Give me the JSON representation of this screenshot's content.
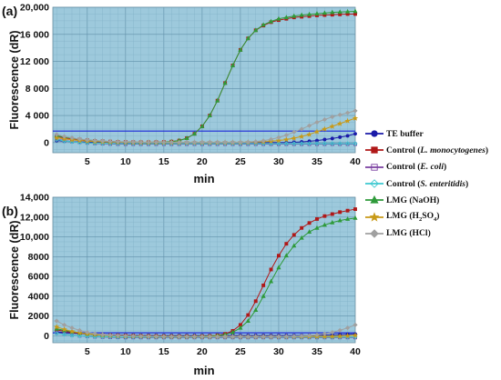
{
  "chart_data": [
    {
      "panel_label": "(a)",
      "type": "line",
      "xlabel": "min",
      "ylabel": "Fluorescence (dR)",
      "xlim": [
        0.5,
        40
      ],
      "ylim": [
        -1500,
        20000
      ],
      "xticks": [
        5,
        10,
        15,
        20,
        25,
        30,
        35,
        40
      ],
      "yticks": [
        0,
        4000,
        8000,
        12000,
        16000,
        20000
      ],
      "ytick_labels": [
        "0",
        "4 000",
        "8 000",
        "12 000",
        "16 000",
        "20,000"
      ],
      "background": "#9dc9dc",
      "grid": true,
      "threshold": 1700,
      "x": [
        1,
        2,
        3,
        4,
        5,
        6,
        7,
        8,
        9,
        10,
        11,
        12,
        13,
        14,
        15,
        16,
        17,
        18,
        19,
        20,
        21,
        22,
        23,
        24,
        25,
        26,
        27,
        28,
        29,
        30,
        31,
        32,
        33,
        34,
        35,
        36,
        37,
        38,
        39,
        40
      ],
      "series": [
        {
          "key": "te",
          "values": [
            300,
            200,
            150,
            100,
            80,
            60,
            50,
            40,
            30,
            20,
            20,
            20,
            20,
            20,
            20,
            20,
            20,
            20,
            20,
            20,
            20,
            20,
            20,
            20,
            20,
            20,
            20,
            20,
            20,
            20,
            20,
            50,
            100,
            200,
            300,
            450,
            600,
            800,
            1000,
            1300
          ]
        },
        {
          "key": "lm",
          "values": [
            900,
            700,
            550,
            450,
            350,
            250,
            200,
            150,
            100,
            80,
            60,
            50,
            50,
            60,
            80,
            150,
            300,
            650,
            1300,
            2400,
            4000,
            6200,
            8800,
            11400,
            13700,
            15400,
            16600,
            17300,
            17800,
            18100,
            18300,
            18500,
            18600,
            18700,
            18800,
            18850,
            18900,
            18950,
            19000,
            19000
          ]
        },
        {
          "key": "ec",
          "values": [
            500,
            300,
            150,
            50,
            -50,
            -120,
            -170,
            -200,
            -220,
            -230,
            -230,
            -230,
            -230,
            -230,
            -230,
            -230,
            -230,
            -230,
            -230,
            -230,
            -230,
            -230,
            -230,
            -230,
            -230,
            -230,
            -230,
            -230,
            -230,
            -230,
            -230,
            -230,
            -230,
            -230,
            -230,
            -230,
            -230,
            -230,
            -230,
            -230
          ]
        },
        {
          "key": "se",
          "values": [
            450,
            250,
            120,
            30,
            -40,
            -90,
            -120,
            -140,
            -150,
            -150,
            -150,
            -150,
            -150,
            -150,
            -150,
            -150,
            -150,
            -150,
            -150,
            -150,
            -150,
            -150,
            -150,
            -150,
            -150,
            -150,
            -150,
            -150,
            -150,
            -150,
            -150,
            -150,
            -150,
            -150,
            -150,
            -150,
            -150,
            -150,
            -150,
            -150
          ]
        },
        {
          "key": "naoh",
          "values": [
            1000,
            800,
            650,
            500,
            400,
            300,
            220,
            160,
            110,
            80,
            60,
            50,
            50,
            60,
            80,
            150,
            300,
            650,
            1300,
            2400,
            4000,
            6200,
            8800,
            11400,
            13700,
            15400,
            16600,
            17400,
            17900,
            18300,
            18500,
            18700,
            18850,
            18950,
            19050,
            19150,
            19250,
            19300,
            19350,
            19400
          ]
        },
        {
          "key": "h2so4",
          "values": [
            700,
            550,
            400,
            300,
            220,
            150,
            110,
            80,
            60,
            40,
            30,
            20,
            20,
            20,
            20,
            20,
            20,
            20,
            20,
            20,
            20,
            20,
            20,
            20,
            30,
            50,
            80,
            120,
            200,
            300,
            450,
            650,
            900,
            1200,
            1600,
            2000,
            2400,
            2800,
            3200,
            3600
          ]
        },
        {
          "key": "hcl",
          "values": [
            1200,
            900,
            700,
            520,
            400,
            300,
            230,
            170,
            120,
            90,
            70,
            50,
            40,
            40,
            40,
            40,
            40,
            40,
            40,
            40,
            40,
            40,
            40,
            40,
            50,
            80,
            150,
            280,
            480,
            750,
            1100,
            1550,
            2000,
            2500,
            3000,
            3400,
            3800,
            4100,
            4400,
            4700
          ]
        }
      ]
    },
    {
      "panel_label": "(b)",
      "type": "line",
      "xlabel": "min",
      "ylabel": "Fluorescence (dR)",
      "xlim": [
        0.5,
        40
      ],
      "ylim": [
        -700,
        14000
      ],
      "xticks": [
        5,
        10,
        15,
        20,
        25,
        30,
        35,
        40
      ],
      "yticks": [
        0,
        2000,
        4000,
        6000,
        8000,
        10000,
        12000,
        14000
      ],
      "ytick_labels": [
        "0",
        "2000",
        "4000",
        "6000",
        "8000",
        "10,000",
        "12,000",
        "14,000"
      ],
      "background": "#9dc9dc",
      "grid": true,
      "threshold": 300,
      "x": [
        1,
        2,
        3,
        4,
        5,
        6,
        7,
        8,
        9,
        10,
        11,
        12,
        13,
        14,
        15,
        16,
        17,
        18,
        19,
        20,
        21,
        22,
        23,
        24,
        25,
        26,
        27,
        28,
        29,
        30,
        31,
        32,
        33,
        34,
        35,
        36,
        37,
        38,
        39,
        40
      ],
      "series": [
        {
          "key": "te",
          "values": [
            400,
            330,
            270,
            220,
            180,
            150,
            120,
            100,
            80,
            70,
            60,
            50,
            50,
            40,
            40,
            40,
            40,
            40,
            40,
            40,
            40,
            40,
            40,
            40,
            40,
            40,
            40,
            40,
            40,
            40,
            40,
            40,
            40,
            50,
            60,
            80,
            100,
            120,
            150,
            180
          ]
        },
        {
          "key": "lm",
          "values": [
            600,
            450,
            350,
            250,
            180,
            120,
            80,
            50,
            30,
            10,
            0,
            -20,
            -30,
            -40,
            -50,
            -60,
            -60,
            -60,
            -60,
            -50,
            -20,
            50,
            200,
            500,
            1100,
            2100,
            3500,
            5100,
            6700,
            8100,
            9300,
            10200,
            10900,
            11400,
            11800,
            12100,
            12300,
            12500,
            12650,
            12800
          ]
        },
        {
          "key": "ec",
          "values": [
            300,
            180,
            80,
            0,
            -60,
            -100,
            -130,
            -150,
            -160,
            -170,
            -170,
            -170,
            -170,
            -170,
            -170,
            -170,
            -170,
            -170,
            -170,
            -170,
            -170,
            -170,
            -170,
            -170,
            -170,
            -170,
            -170,
            -170,
            -170,
            -170,
            -170,
            -170,
            -170,
            -170,
            -170,
            -170,
            -170,
            -170,
            -170,
            -170
          ]
        },
        {
          "key": "se",
          "values": [
            250,
            150,
            60,
            0,
            -50,
            -80,
            -100,
            -110,
            -120,
            -120,
            -120,
            -120,
            -120,
            -120,
            -120,
            -120,
            -120,
            -120,
            -120,
            -120,
            -120,
            -120,
            -120,
            -120,
            -120,
            -120,
            -120,
            -120,
            -120,
            -120,
            -120,
            -120,
            -120,
            -120,
            -120,
            -120,
            -120,
            -120,
            -120,
            -120
          ]
        },
        {
          "key": "naoh",
          "values": [
            700,
            550,
            420,
            300,
            200,
            130,
            80,
            40,
            10,
            -10,
            -20,
            -30,
            -40,
            -40,
            -40,
            -40,
            -40,
            -40,
            -40,
            -30,
            -10,
            30,
            120,
            350,
            800,
            1500,
            2600,
            4000,
            5500,
            6900,
            8100,
            9100,
            9900,
            10500,
            10900,
            11200,
            11450,
            11650,
            11800,
            11900
          ]
        },
        {
          "key": "h2so4",
          "values": [
            900,
            650,
            450,
            300,
            200,
            130,
            80,
            40,
            10,
            -10,
            -20,
            -30,
            -40,
            -50,
            -60,
            -70,
            -70,
            -70,
            -70,
            -70,
            -70,
            -70,
            -70,
            -70,
            -70,
            -70,
            -70,
            -70,
            -70,
            -70,
            -70,
            -70,
            -70,
            -70,
            -70,
            -70,
            -60,
            -40,
            0,
            50
          ]
        },
        {
          "key": "hcl",
          "values": [
            1500,
            1100,
            800,
            550,
            350,
            220,
            120,
            60,
            20,
            -10,
            -30,
            -50,
            -60,
            -70,
            -80,
            -80,
            -80,
            -80,
            -80,
            -80,
            -80,
            -80,
            -80,
            -80,
            -80,
            -80,
            -80,
            -80,
            -80,
            -70,
            -60,
            -40,
            -10,
            30,
            100,
            200,
            350,
            550,
            800,
            1100
          ]
        }
      ]
    }
  ],
  "series_styles": [
    {
      "key": "te",
      "color": "#1a1aa8",
      "marker": "circle",
      "fill": true
    },
    {
      "key": "lm",
      "color": "#b01818",
      "marker": "square",
      "fill": true
    },
    {
      "key": "ec",
      "color": "#7a3fa0",
      "marker": "square",
      "fill": false
    },
    {
      "key": "se",
      "color": "#3cc8d0",
      "marker": "diamond",
      "fill": false
    },
    {
      "key": "naoh",
      "color": "#2e9a3a",
      "marker": "triangle",
      "fill": true
    },
    {
      "key": "h2so4",
      "color": "#c89a18",
      "marker": "star",
      "fill": true
    },
    {
      "key": "hcl",
      "color": "#a0a0a0",
      "marker": "diamond",
      "fill": true
    }
  ],
  "legend": {
    "items": [
      {
        "key": "te",
        "plain": "TE buffer",
        "italic": "",
        "sub": "",
        "after": ""
      },
      {
        "key": "lm",
        "plain": "Control (",
        "italic": "L. monocytogenes",
        "sub": "",
        "after": ")"
      },
      {
        "key": "ec",
        "plain": "Control (",
        "italic": "E. coli",
        "sub": "",
        "after": ")"
      },
      {
        "key": "se",
        "plain": "Control (",
        "italic": "S. enteritidis",
        "sub": "",
        "after": ")"
      },
      {
        "key": "naoh",
        "plain": "LMG (NaOH)",
        "italic": "",
        "sub": "",
        "after": ""
      },
      {
        "key": "h2so4",
        "plain": "LMG (H",
        "italic": "",
        "sub": "2",
        "after": "SO",
        "sub2": "4",
        "after2": ")"
      },
      {
        "key": "hcl",
        "plain": "LMG (HCl)",
        "italic": "",
        "sub": "",
        "after": ""
      }
    ]
  }
}
